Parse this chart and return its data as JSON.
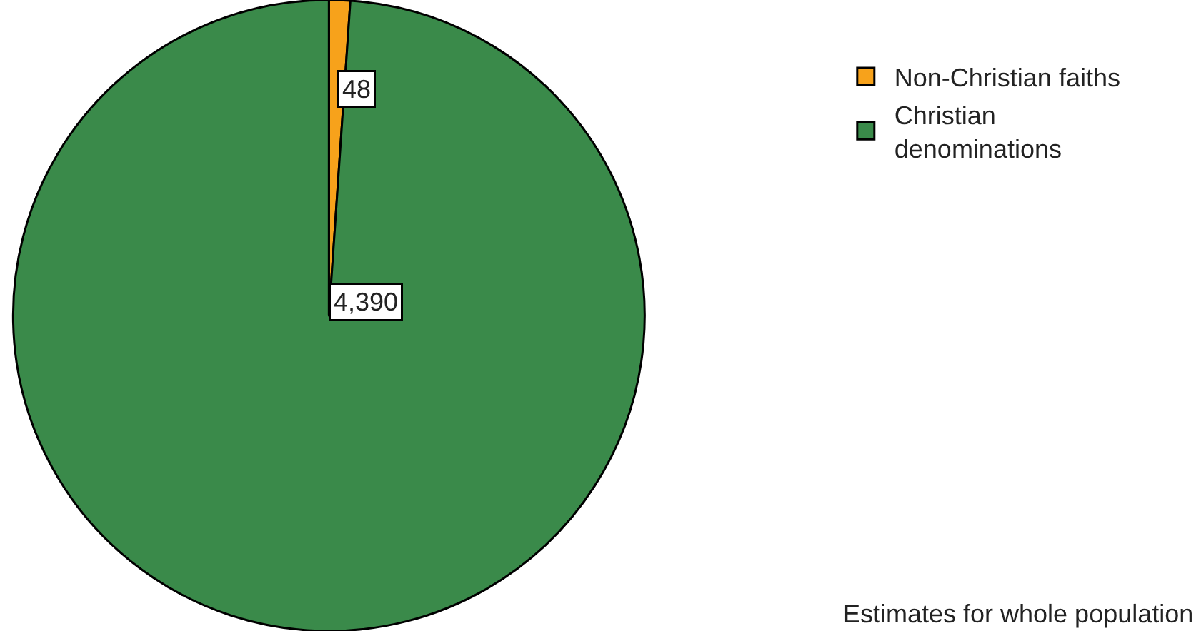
{
  "chart_data": {
    "type": "pie",
    "categories": [
      "Non-Christian faiths",
      "Christian denominations"
    ],
    "values": [
      48,
      4390
    ],
    "colors": [
      "#f7a21b",
      "#3a8a4a"
    ],
    "value_labels": [
      "48",
      "4,390"
    ],
    "legend": "top right",
    "annotations": [
      "Estimates for whole population"
    ]
  }
}
